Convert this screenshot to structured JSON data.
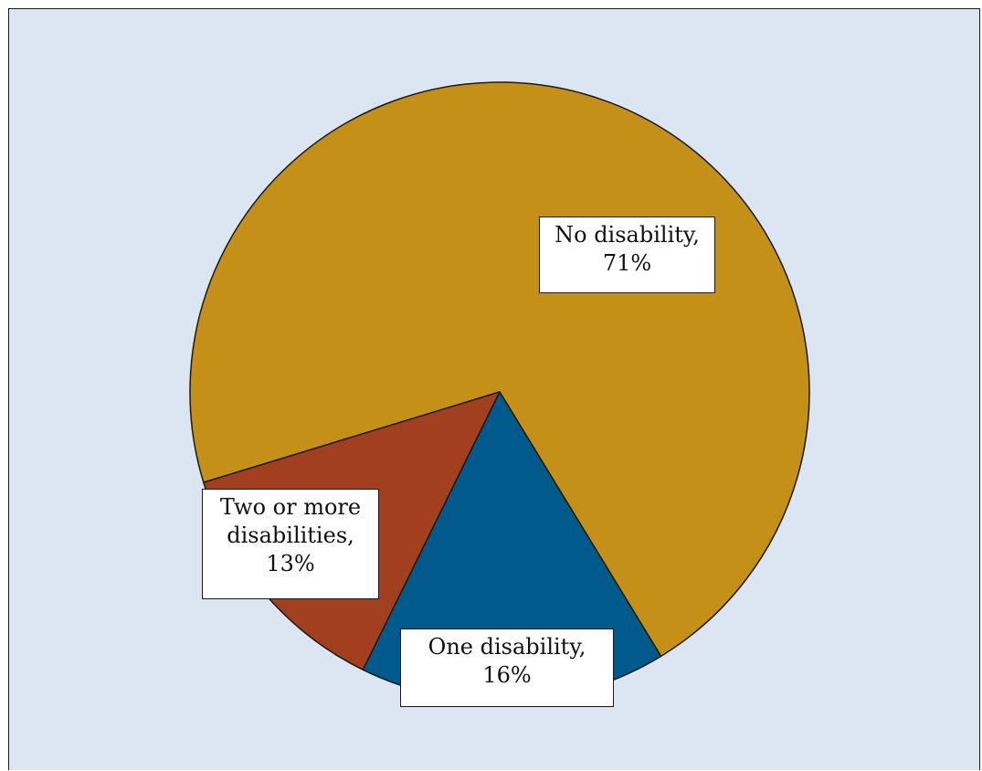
{
  "chart_data": {
    "type": "pie",
    "title": "",
    "slices": [
      {
        "label": "No disability",
        "value": 71,
        "color": "#c59017",
        "label_lines": [
          "No disability,",
          "71%"
        ]
      },
      {
        "label": "One disability",
        "value": 16,
        "color": "#005a8b",
        "label_lines": [
          "One disability,",
          "16%"
        ]
      },
      {
        "label": "Two or more disabilities",
        "value": 13,
        "color": "#a23f1f",
        "label_lines": [
          "Two or more",
          "disabilities,",
          "13%"
        ]
      }
    ],
    "legend": "none",
    "background_color": "#dce6f2"
  }
}
